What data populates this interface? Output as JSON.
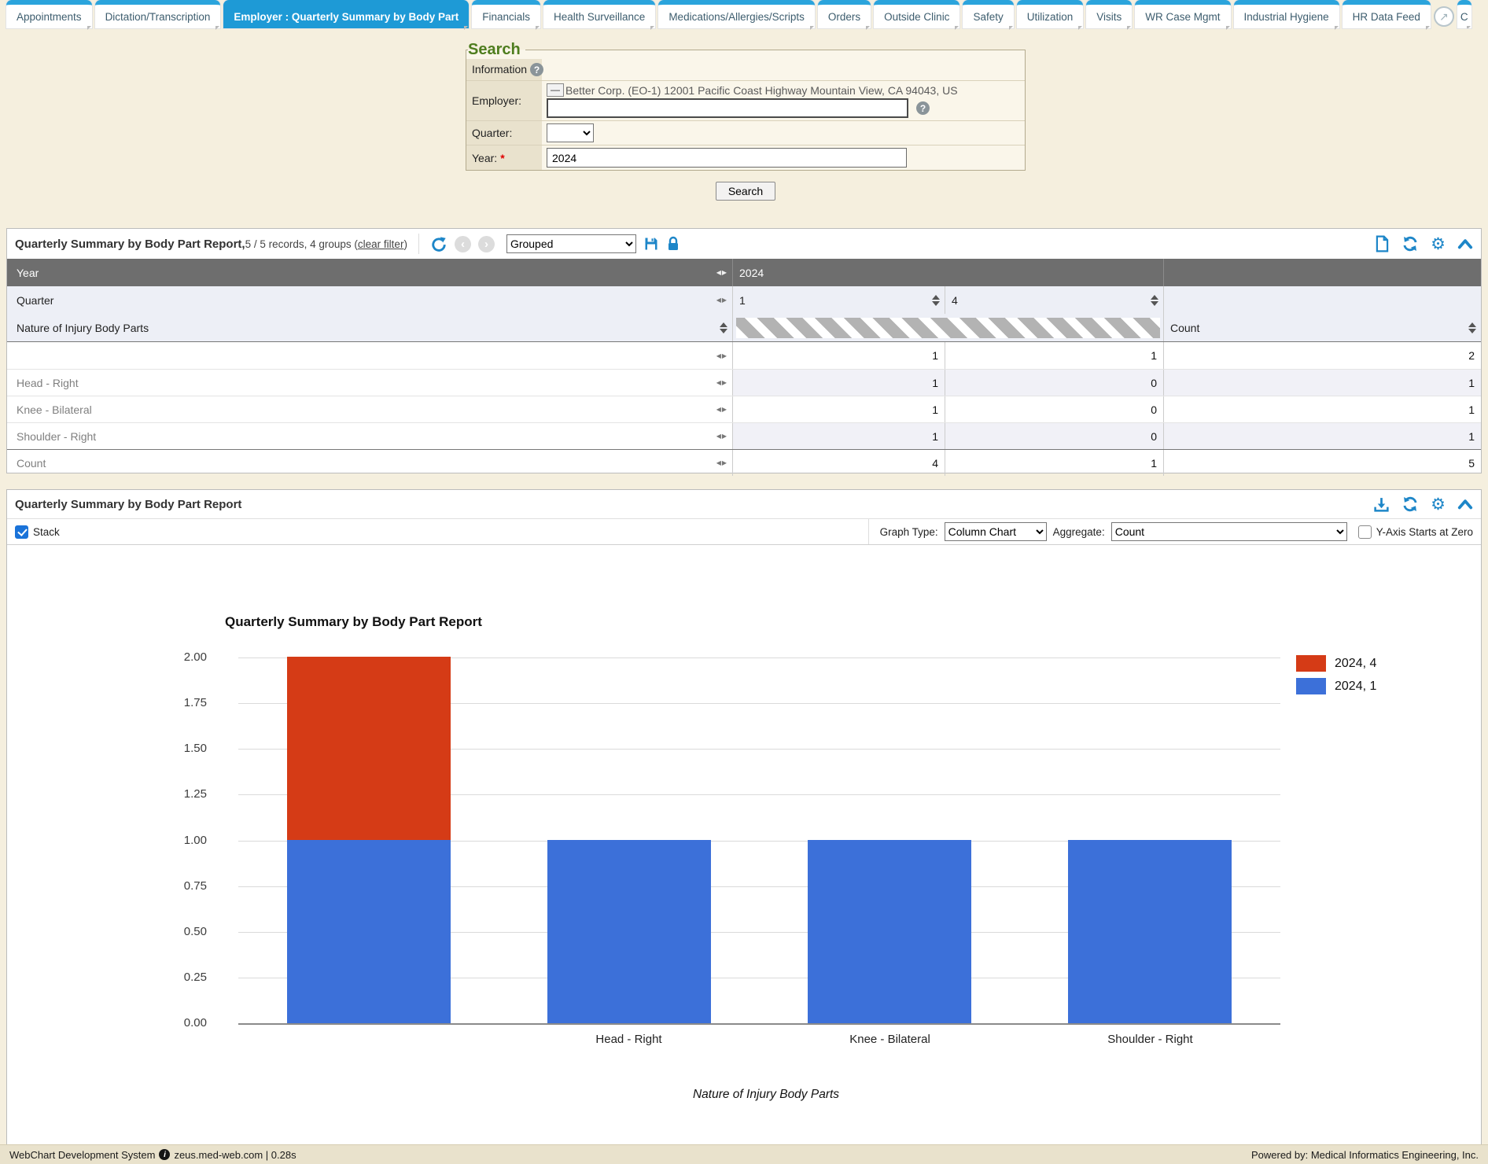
{
  "tabs": {
    "items": [
      {
        "label": "Appointments",
        "active": false
      },
      {
        "label": "Dictation/Transcription",
        "active": false
      },
      {
        "label": "Employer : Quarterly Summary by Body Part",
        "active": true
      },
      {
        "label": "Financials",
        "active": false
      },
      {
        "label": "Health Surveillance",
        "active": false
      },
      {
        "label": "Medications/Allergies/Scripts",
        "active": false
      },
      {
        "label": "Orders",
        "active": false
      },
      {
        "label": "Outside Clinic",
        "active": false
      },
      {
        "label": "Safety",
        "active": false
      },
      {
        "label": "Utilization",
        "active": false
      },
      {
        "label": "Visits",
        "active": false
      },
      {
        "label": "WR Case Mgmt",
        "active": false
      },
      {
        "label": "Industrial Hygiene",
        "active": false
      },
      {
        "label": "HR Data Feed",
        "active": false
      }
    ],
    "external_link_glyph": "↗",
    "partial_tab_label": "C"
  },
  "search": {
    "legend": "Search",
    "info_label": "Information",
    "employer_label": "Employer:",
    "collapse_button": "—",
    "employer_selected": "Better Corp. (EO-1) 12001 Pacific Coast Highway Mountain View, CA 94043, US",
    "employer_input_value": "",
    "quarter_label": "Quarter:",
    "quarter_value": "",
    "year_label": "Year:",
    "required_mark": "*",
    "year_value": "2024",
    "search_button": "Search"
  },
  "report_table": {
    "title": "Quarterly Summary by Body Part Report,",
    "records_text": " 5 / 5 records, 4 groups (",
    "clear_filter": "clear filter",
    "close_paren": ")",
    "grouped_select": "Grouped",
    "year_row": {
      "label": "Year",
      "value": "2024"
    },
    "quarter_row": {
      "label": "Quarter",
      "col1": "1",
      "col2": "4"
    },
    "nature_row": {
      "label": "Nature of Injury Body Parts",
      "count_label": "Count"
    },
    "rows": [
      {
        "label": "",
        "q1": "1",
        "q4": "1",
        "count": "2"
      },
      {
        "label": "Head - Right",
        "q1": "1",
        "q4": "0",
        "count": "1"
      },
      {
        "label": "Knee - Bilateral",
        "q1": "1",
        "q4": "0",
        "count": "1"
      },
      {
        "label": "Shoulder - Right",
        "q1": "1",
        "q4": "0",
        "count": "1"
      },
      {
        "label": "Count",
        "q1": "4",
        "q4": "1",
        "count": "5"
      }
    ]
  },
  "chart_panel": {
    "title": "Quarterly Summary by Body Part Report",
    "stack_label": "Stack",
    "graph_type_label": "Graph Type:",
    "graph_type_value": "Column Chart",
    "aggregate_label": "Aggregate:",
    "aggregate_value": "Count",
    "yaxis_zero_label": "Y-Axis Starts at Zero"
  },
  "chart_data": {
    "type": "bar",
    "stacked": true,
    "title": "Quarterly Summary by Body Part Report",
    "categories": [
      "",
      "Head - Right",
      "Knee - Bilateral",
      "Shoulder - Right"
    ],
    "series": [
      {
        "name": "2024, 4",
        "color": "#d53b16",
        "values": [
          1,
          0,
          0,
          0
        ]
      },
      {
        "name": "2024, 1",
        "color": "#3c70d9",
        "values": [
          1,
          1,
          1,
          1
        ]
      }
    ],
    "xlabel": "Nature of Injury Body Parts",
    "ylabel": "",
    "ylim": [
      0,
      2
    ],
    "yticks": [
      "2.00",
      "1.75",
      "1.50",
      "1.25",
      "1.00",
      "0.75",
      "0.50",
      "0.25",
      "0.00"
    ],
    "grid": true,
    "legend_position": "top-right"
  },
  "footer": {
    "left": "WebChart Development System",
    "host": "zeus.med-web.com | 0.28s",
    "right": "Powered by: Medical Informatics Engineering, Inc."
  },
  "colors": {
    "accent_blue": "#1e9ad6",
    "icon_blue": "#1d86c8",
    "header_gray": "#6e6e6e",
    "page_beige": "#f5efde"
  }
}
